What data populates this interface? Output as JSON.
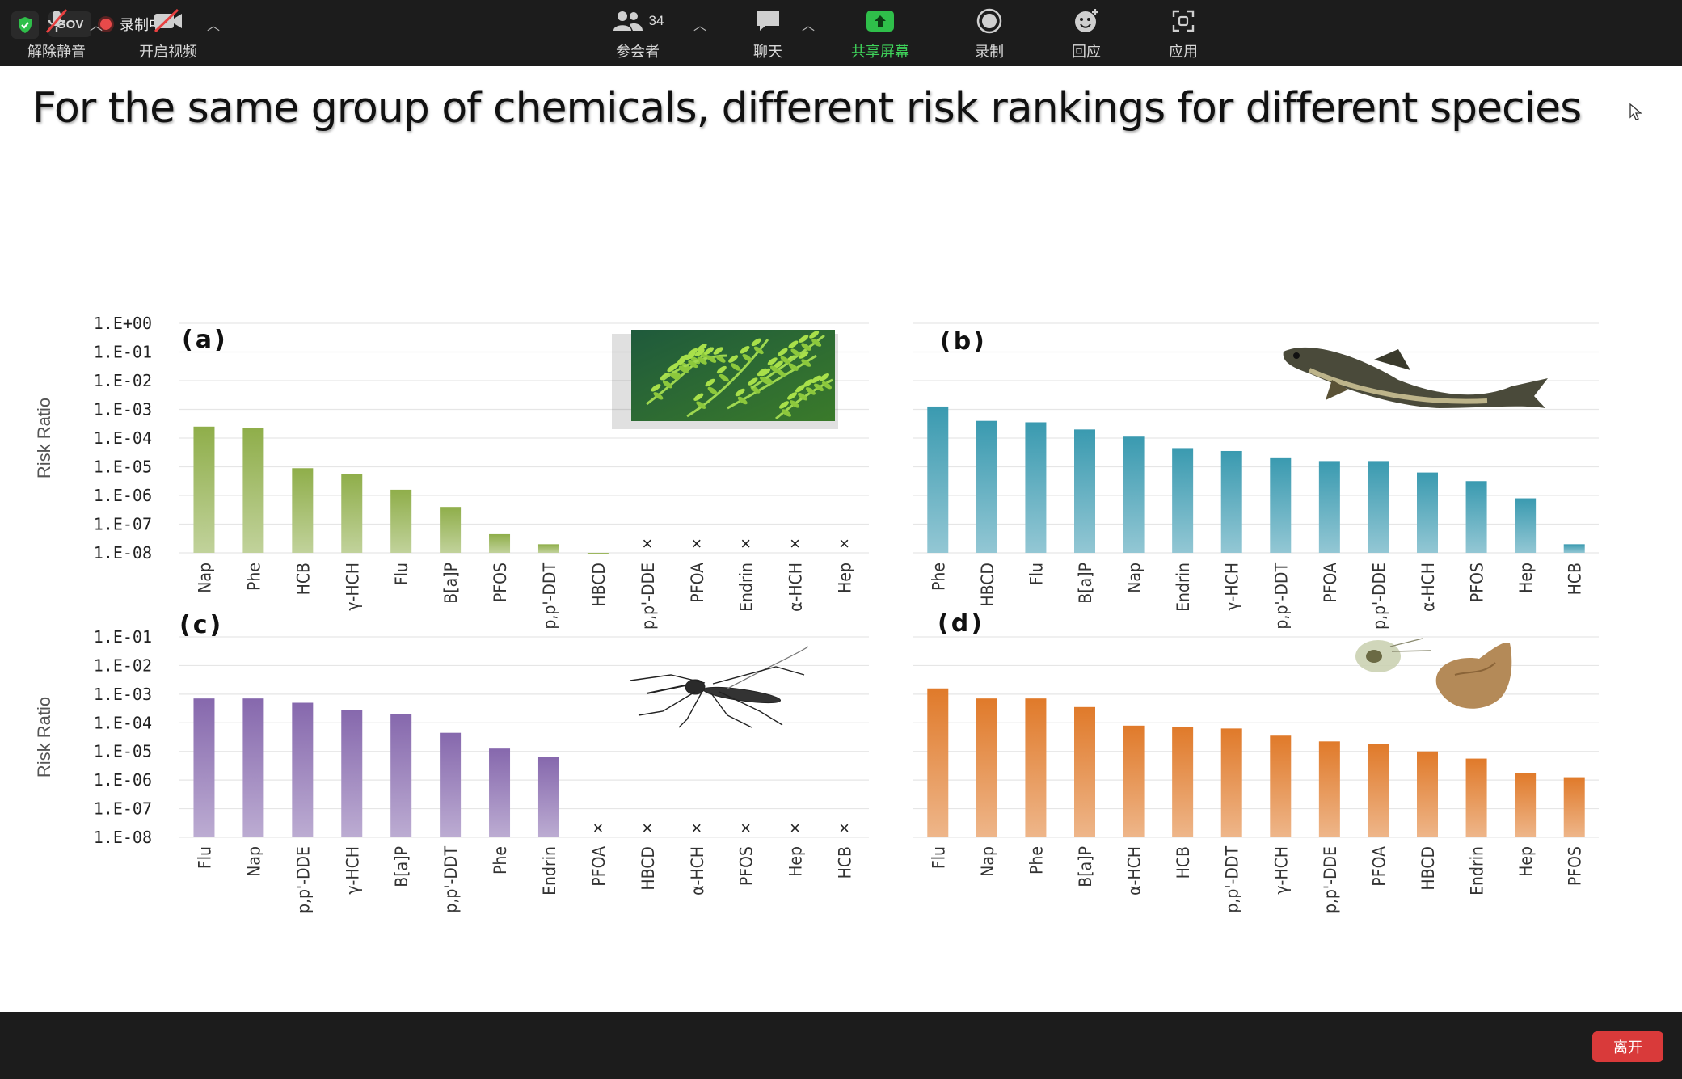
{
  "topbar": {
    "gov_label": "GOV",
    "recording_label": "录制中"
  },
  "slide": {
    "title": "For the same  group of chemicals, different risk rankings for different species"
  },
  "chart_data": [
    {
      "panel": "(a)",
      "type": "bar",
      "scale": "log",
      "ylabel": "Risk Ratio",
      "yticks": [
        "1.E+00",
        "1.E-01",
        "1.E-02",
        "1.E-03",
        "1.E-04",
        "1.E-05",
        "1.E-06",
        "1.E-07",
        "1.E-08"
      ],
      "ylim": [
        0,
        -8
      ],
      "categories": [
        "Nap",
        "Phe",
        "HCB",
        "γ-HCH",
        "Flu",
        "B[a]P",
        "PFOS",
        "p,p'-DDT",
        "HBCD",
        "p,p'-DDE",
        "PFOA",
        "Endrin",
        "α-HCH",
        "Hep"
      ],
      "log10_values": [
        -3.6,
        -3.65,
        -5.05,
        -5.25,
        -5.8,
        -6.4,
        -7.35,
        -7.7,
        -8.0,
        null,
        null,
        null,
        null,
        null
      ],
      "missing_marker": "×",
      "color": "#8fae4a",
      "image": "aquatic-plant-photo"
    },
    {
      "panel": "(b)",
      "type": "bar",
      "scale": "log",
      "ylabel": "",
      "yticks": [],
      "ylim": [
        0,
        -8
      ],
      "categories": [
        "Phe",
        "HBCD",
        "Flu",
        "B[a]P",
        "Nap",
        "Endrin",
        "γ-HCH",
        "p,p'-DDT",
        "PFOA",
        "p,p'-DDE",
        "α-HCH",
        "PFOS",
        "Hep",
        "HCB"
      ],
      "log10_values": [
        -2.9,
        -3.4,
        -3.45,
        -3.7,
        -3.95,
        -4.35,
        -4.45,
        -4.7,
        -4.8,
        -4.8,
        -5.2,
        -5.5,
        -6.1,
        -7.7
      ],
      "missing_marker": "×",
      "color": "#3a9ab0",
      "image": "carp-fish-photo"
    },
    {
      "panel": "(c)",
      "type": "bar",
      "scale": "log",
      "ylabel": "Risk Ratio",
      "yticks": [
        "1.E-01",
        "1.E-02",
        "1.E-03",
        "1.E-04",
        "1.E-05",
        "1.E-06",
        "1.E-07",
        "1.E-08"
      ],
      "ylim": [
        -1,
        -8
      ],
      "categories": [
        "Flu",
        "Nap",
        "p,p'-DDE",
        "γ-HCH",
        "B[a]P",
        "p,p'-DDT",
        "Phe",
        "Endrin",
        "PFOA",
        "HBCD",
        "α-HCH",
        "PFOS",
        "Hep",
        "HCB"
      ],
      "log10_values": [
        -3.15,
        -3.15,
        -3.3,
        -3.55,
        -3.7,
        -4.35,
        -4.9,
        -5.2,
        null,
        null,
        null,
        null,
        null,
        null
      ],
      "missing_marker": "×",
      "color": "#8668ad",
      "image": "mosquito-photo"
    },
    {
      "panel": "(d)",
      "type": "bar",
      "scale": "log",
      "ylabel": "",
      "yticks": [],
      "ylim": [
        -1,
        -8
      ],
      "categories": [
        "Flu",
        "Nap",
        "Phe",
        "B[a]P",
        "α-HCH",
        "HCB",
        "p,p'-DDT",
        "γ-HCH",
        "p,p'-DDE",
        "PFOA",
        "HBCD",
        "Endrin",
        "Hep",
        "PFOS"
      ],
      "log10_values": [
        -2.8,
        -3.15,
        -3.15,
        -3.45,
        -4.1,
        -4.15,
        -4.2,
        -4.45,
        -4.65,
        -4.75,
        -5.0,
        -5.25,
        -5.75,
        -5.9
      ],
      "missing_marker": "×",
      "color": "#e07a2a",
      "image": "daphnia-and-snail-photo"
    }
  ],
  "toolbar": {
    "mute_label": "解除静音",
    "video_label": "开启视频",
    "participants_label": "参会者",
    "participants_count": "34",
    "chat_label": "聊天",
    "share_label": "共享屏幕",
    "record_label": "录制",
    "reactions_label": "回应",
    "apps_label": "应用",
    "leave_label": "离开"
  },
  "colors": {
    "share_green": "#2fbf4a",
    "leave_red": "#d93a3a",
    "bar_bg": "#1c1c1c"
  }
}
